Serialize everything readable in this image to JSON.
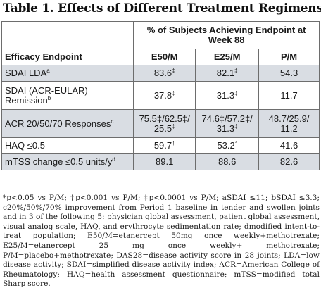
{
  "title": "Table 1. Effects of Different Treatment Regimens.",
  "table": {
    "group_header": "% of Subjects Achieving Endpoint at Week 88",
    "column_headers": {
      "endpoint": "Efficacy Endpoint",
      "col1": "E50/M",
      "col2": "E25/M",
      "col3": "P/M"
    },
    "rows": [
      {
        "endpoint": "SDAI LDA",
        "endpoint_sup": "a",
        "c1": "83.6",
        "c1_sup": "‡",
        "c2": "82.1",
        "c2_sup": "‡",
        "c3": "54.3"
      },
      {
        "endpoint": "SDAI (ACR-EULAR) Remission",
        "endpoint_sup": "b",
        "c1": "37.8",
        "c1_sup": "‡",
        "c2": "31.3",
        "c2_sup": "‡",
        "c3": "11.7"
      },
      {
        "endpoint": "ACR 20/50/70 Responses",
        "endpoint_sup": "c",
        "c1": "75.5‡/62.5‡/ 25.5",
        "c1_sup": "‡",
        "c2": "74.6‡/57.2‡/ 31.3",
        "c2_sup": "‡",
        "c3": "48.7/25.9/ 11.2"
      },
      {
        "endpoint": "HAQ ≤0.5",
        "endpoint_sup": "",
        "c1": "59.7",
        "c1_sup": "†",
        "c2": "53.2",
        "c2_sup": "*",
        "c3": "41.6"
      },
      {
        "endpoint": "mTSS change ≤0.5 units/y",
        "endpoint_sup": "d",
        "c1": "89.1",
        "c1_sup": "",
        "c2": "88.6",
        "c2_sup": "",
        "c3": "82.6"
      }
    ]
  },
  "footnote": "*p<0.05 vs P/M; †p<0.001 vs P/M; ‡p<0.0001 vs P/M; aSDAI ≤11; bSDAI ≤3.3; c20%/50%/70% improvement from Period 1 baseline in tender and swollen joints and in 3 of the following 5: physician global assessment, patient global assessment, visual analog scale, HAQ, and erythrocyte sedimentation rate; dmodified intent-to-treat population; E50/M=etanercept 50mg once weekly+methotrexate; E25/M=etanercept 25 mg once weekly+ methotrexate; P/M=placebo+methotrexate; DAS28=disease activity score in 28 joints; LDA=low disease activity; SDAI=simplified disease activity index; ACR=American College of Rheumatology; HAQ=health assessment questionnaire; mTSS=modified total Sharp score."
}
